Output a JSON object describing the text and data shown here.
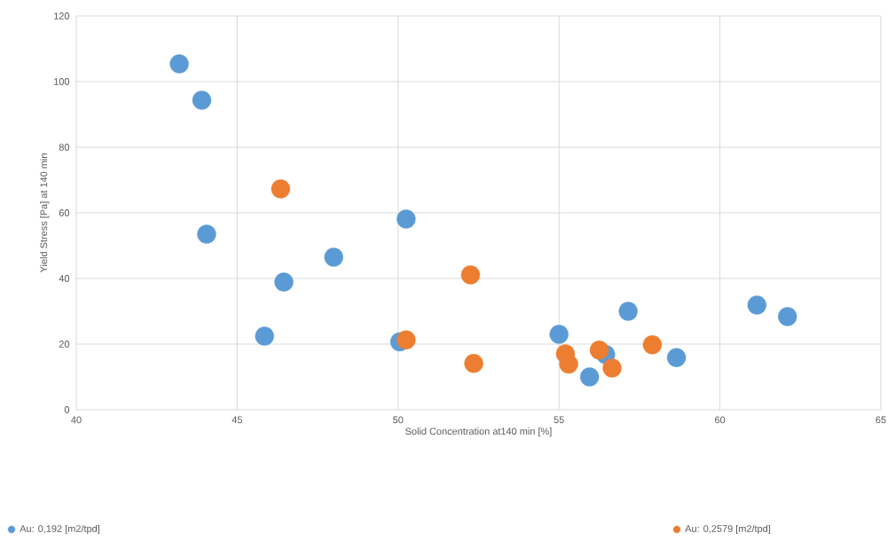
{
  "chart_data": {
    "type": "scatter",
    "xlabel": "Solid Concentration at140 min [%]",
    "ylabel": "Yield Stress  [Pa] at 140 min",
    "xlim": [
      40,
      65
    ],
    "xticks": [
      40,
      45,
      50,
      55,
      60,
      65
    ],
    "ylim": [
      0,
      120
    ],
    "yticks": [
      0,
      20,
      40,
      60,
      80,
      100,
      120
    ],
    "grid": true,
    "legend": "bottom",
    "marker": "circle",
    "series": [
      {
        "name": "Au: 0,192 [m2/tpd]",
        "color": "#5b9bd5",
        "x": [
          43.2,
          43.9,
          44.05,
          45.85,
          46.45,
          48.0,
          50.25,
          50.05,
          55.0,
          55.95,
          56.45,
          57.15,
          58.65,
          61.15,
          62.1
        ],
        "values": [
          105.4,
          94.3,
          53.5,
          22.4,
          38.9,
          46.5,
          58.1,
          20.7,
          23.0,
          10.0,
          16.8,
          30.0,
          15.9,
          31.9,
          28.4
        ]
      },
      {
        "name": "Au: 0,2579 [m2/tpd]",
        "color": "#ed7d31",
        "x": [
          46.35,
          50.25,
          52.25,
          52.35,
          55.2,
          55.3,
          56.25,
          56.65,
          57.9
        ],
        "values": [
          67.3,
          21.3,
          41.1,
          14.1,
          17.0,
          13.9,
          18.2,
          12.7,
          19.8
        ]
      }
    ]
  }
}
